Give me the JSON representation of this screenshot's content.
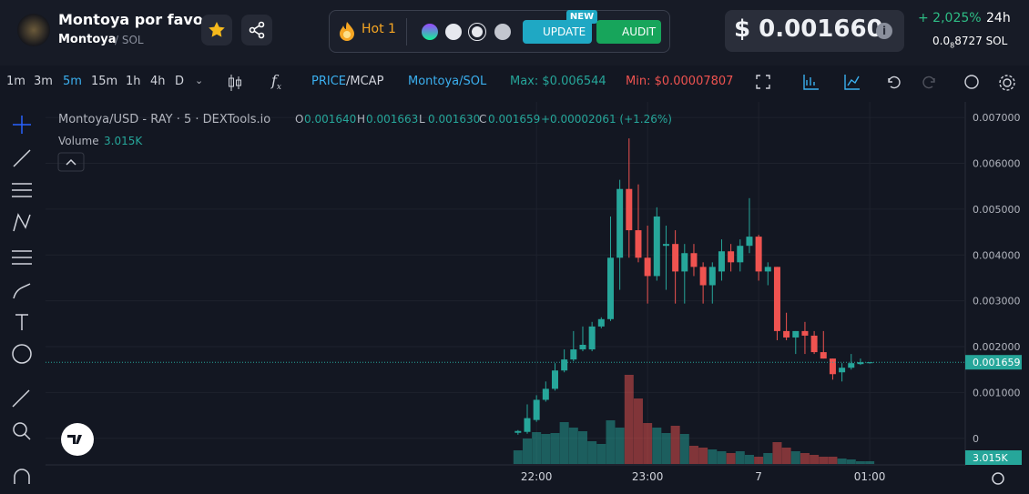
{
  "header": {
    "token_name": "Montoya por favor",
    "token_symbol": "Montoya",
    "pair_quote": "/ SOL",
    "hot_label": "Hot",
    "hot_rank": "1",
    "update_button": "UPDATE",
    "new_badge": "NEW",
    "audit_button": "AUDIT",
    "price_usd": "$ 0.001660",
    "change_24h": "+ 2,025%",
    "change_period": "24h",
    "price_sol_lead": "0.0",
    "price_sol_zeros": "8",
    "price_sol_digits": "8727",
    "price_sol_unit": "SOL"
  },
  "toolbar": {
    "intervals": [
      "1m",
      "3m",
      "5m",
      "15m",
      "1h",
      "4h",
      "D"
    ],
    "active_interval": 2,
    "price_toggle": "PRICE",
    "toggle_sep": "/",
    "mcap_toggle": "MCAP",
    "pair": "Montoya/SOL",
    "max_label": "Max:",
    "max_value": "$0.006544",
    "min_label": "Min:",
    "min_value": "$0.00007807"
  },
  "chart_data": {
    "type": "candlestick",
    "legend": {
      "symbol": "Montoya/USD - RAY · 5 · DEXTools.io",
      "o_label": "O",
      "o_value": "0.001640",
      "h_label": "H",
      "h_value": "0.001663",
      "l_label": "L",
      "l_value": "0.001630",
      "c_label": "C",
      "c_value": "0.001659",
      "change": "+0.00002061 (+1.26%)",
      "volume_label": "Volume"
    },
    "x": [
      21.8333,
      21.9167,
      22.0,
      22.0833,
      22.1667,
      22.25,
      22.3333,
      22.4167,
      22.5,
      22.5833,
      22.6667,
      22.75,
      22.8333,
      22.9167,
      23.0,
      23.0833,
      23.1667,
      23.25,
      23.3333,
      23.4167,
      23.5,
      23.5833,
      23.6667,
      23.75,
      23.8333,
      23.9167,
      24.0,
      24.0833,
      24.1667,
      24.25,
      24.3333,
      24.4167,
      24.5,
      24.5833,
      24.6667,
      24.75,
      24.8333,
      24.9167,
      25.0
    ],
    "open": [
      0.00012,
      0.00014,
      0.0004,
      0.00084,
      0.00108,
      0.00148,
      0.00172,
      0.00194,
      0.00194,
      0.00244,
      0.0026,
      0.00394,
      0.00544,
      0.00454,
      0.00394,
      0.00354,
      0.0042,
      0.00424,
      0.00364,
      0.00404,
      0.00374,
      0.00334,
      0.00364,
      0.00408,
      0.00384,
      0.0042,
      0.0044,
      0.00364,
      0.00374,
      0.00234,
      0.0022,
      0.00234,
      0.00224,
      0.00188,
      0.00174,
      0.00144,
      0.00154,
      0.00162,
      0.00164
    ],
    "high": [
      0.00018,
      0.00074,
      0.00094,
      0.00124,
      0.00164,
      0.00194,
      0.00234,
      0.00244,
      0.00254,
      0.00264,
      0.00484,
      0.00564,
      0.006544,
      0.00554,
      0.00464,
      0.00504,
      0.00464,
      0.00454,
      0.00424,
      0.00424,
      0.00384,
      0.00384,
      0.00434,
      0.00424,
      0.00434,
      0.00524,
      0.00444,
      0.00384,
      0.00374,
      0.00274,
      0.00234,
      0.00254,
      0.00234,
      0.00234,
      0.00174,
      0.00164,
      0.00184,
      0.00174,
      0.001663
    ],
    "low": [
      7.807e-05,
      0.0001,
      0.00036,
      0.0008,
      0.00104,
      0.00144,
      0.00168,
      0.0019,
      0.0019,
      0.0024,
      0.00256,
      0.00324,
      0.00394,
      0.00384,
      0.00294,
      0.00344,
      0.00324,
      0.00294,
      0.00294,
      0.00354,
      0.00294,
      0.00294,
      0.00344,
      0.00364,
      0.00364,
      0.00404,
      0.00344,
      0.00334,
      0.00214,
      0.00214,
      0.00184,
      0.00184,
      0.00184,
      0.00174,
      0.00128,
      0.00124,
      0.0015,
      0.0016,
      0.00163
    ],
    "close": [
      0.00016,
      0.00044,
      0.00084,
      0.00108,
      0.00148,
      0.00172,
      0.00194,
      0.00204,
      0.00244,
      0.0026,
      0.00394,
      0.00544,
      0.00454,
      0.00394,
      0.00354,
      0.00484,
      0.00424,
      0.00364,
      0.00404,
      0.00374,
      0.00334,
      0.00374,
      0.00408,
      0.00384,
      0.0042,
      0.0044,
      0.00364,
      0.00374,
      0.00234,
      0.0022,
      0.00234,
      0.00224,
      0.00188,
      0.00174,
      0.0014,
      0.00154,
      0.00164,
      0.00166,
      0.001659
    ],
    "volume": [
      15000,
      28000,
      35000,
      33000,
      34000,
      46000,
      40000,
      36000,
      25000,
      22000,
      48000,
      40000,
      98000,
      72000,
      45000,
      40000,
      34000,
      42000,
      33000,
      20000,
      18000,
      16000,
      14000,
      12000,
      14000,
      10000,
      8000,
      12000,
      24000,
      18000,
      14000,
      12000,
      10000,
      8000,
      8000,
      6000,
      5000,
      3000,
      3015
    ],
    "xlim": [
      17.58,
      25.86
    ],
    "xticks": [
      {
        "value": 22,
        "label": "22:00"
      },
      {
        "value": 23,
        "label": "23:00"
      },
      {
        "value": 24,
        "label": "7"
      },
      {
        "value": 25,
        "label": "01:00"
      }
    ],
    "ylim": [
      -0.00056,
      0.00734
    ],
    "yticks": [
      0,
      {
        "value": 0.001,
        "label": "0.001000"
      },
      {
        "value": 0.002,
        "label": "0.002000"
      },
      {
        "value": 0.003,
        "label": "0.003000"
      },
      {
        "value": 0.004,
        "label": "0.004000"
      },
      {
        "value": 0.005,
        "label": "0.005000"
      },
      {
        "value": 0.006,
        "label": "0.006000"
      },
      {
        "value": 0.007,
        "label": "0.007000"
      }
    ],
    "grid": true,
    "up_color": "#26a69a",
    "down_color": "#ef5350",
    "last_price": {
      "value": 0.001659,
      "label": "0.001659"
    },
    "last_volume": {
      "value": 3015,
      "label": "3.015K"
    }
  }
}
